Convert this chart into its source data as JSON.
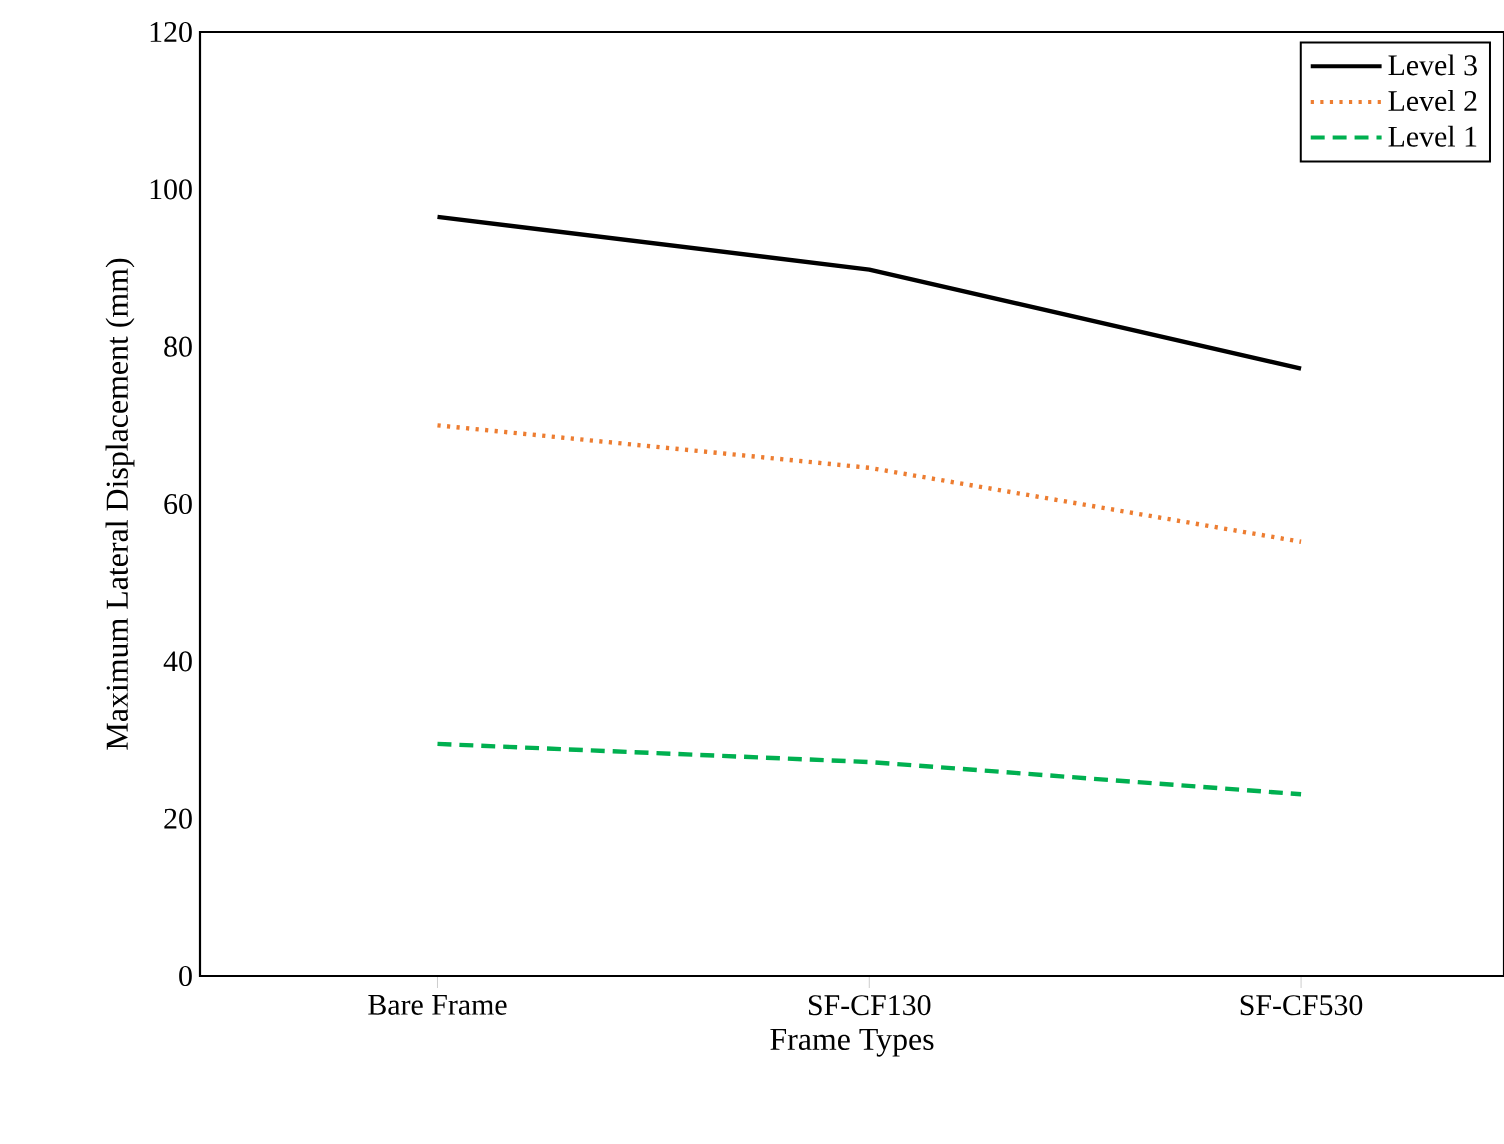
{
  "chart_data": {
    "type": "line",
    "xlabel": "Frame Types",
    "ylabel": "Maximum Lateral Displacement (mm)",
    "categories": [
      "Bare Frame",
      "SF-CF130",
      "SF-CF530"
    ],
    "series": [
      {
        "name": "Level 3",
        "color": "#000000",
        "line_style": "solid",
        "values": [
          96.5,
          89.8,
          77.2
        ]
      },
      {
        "name": "Level 2",
        "color": "#ed7d31",
        "line_style": "dotted",
        "values": [
          70,
          64.6,
          55.2
        ]
      },
      {
        "name": "Level 1",
        "color": "#00b050",
        "line_style": "dashed",
        "values": [
          29.5,
          27.2,
          23.1
        ]
      }
    ],
    "ylim": [
      0,
      120
    ],
    "yticks": [
      0,
      20,
      40,
      60,
      80,
      100,
      120
    ],
    "legend": "top right",
    "grid": false,
    "marker": "none"
  }
}
